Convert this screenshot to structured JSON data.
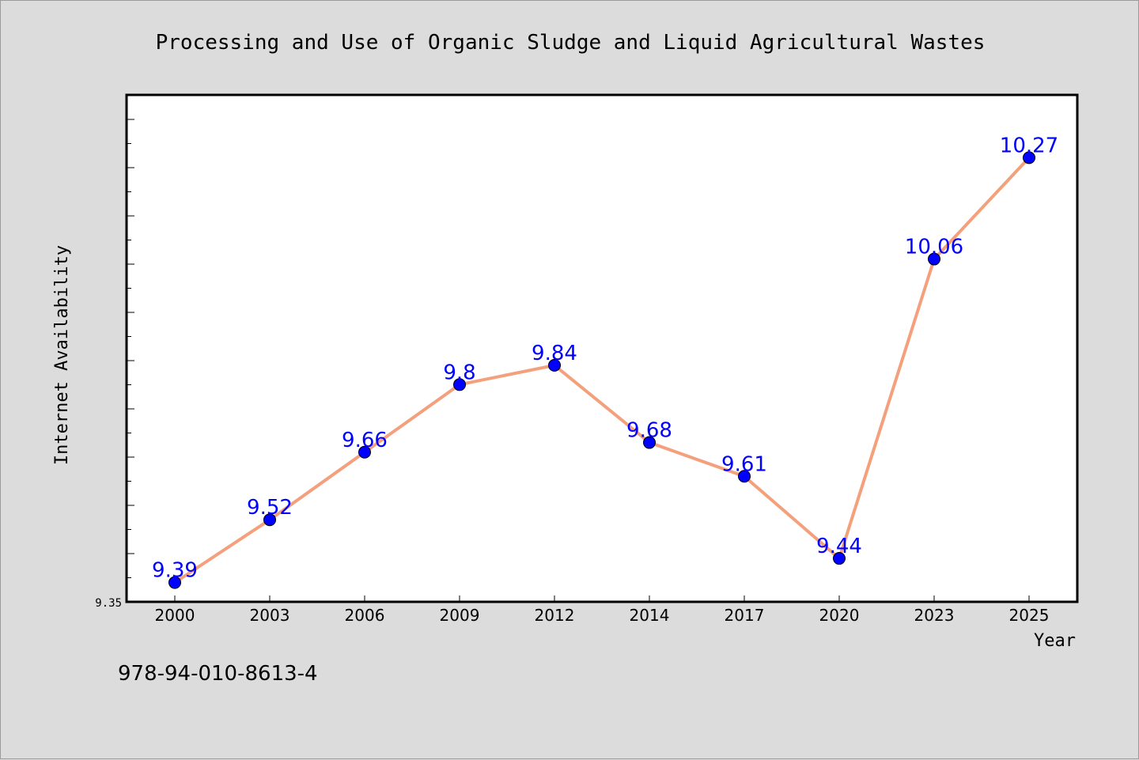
{
  "chart_data": {
    "type": "line",
    "title": "Processing and Use of Organic Sludge and Liquid Agricultural Wastes",
    "xlabel": "Year",
    "ylabel": "Internet Availability",
    "categories": [
      "2000",
      "2003",
      "2006",
      "2009",
      "2012",
      "2014",
      "2017",
      "2020",
      "2023",
      "2025"
    ],
    "values": [
      9.39,
      9.52,
      9.66,
      9.8,
      9.84,
      9.68,
      9.61,
      9.44,
      10.06,
      10.27
    ],
    "data_labels": [
      "9.39",
      "9.52",
      "9.66",
      "9.8",
      "9.84",
      "9.68",
      "9.61",
      "9.44",
      "10.06",
      "10.27"
    ],
    "ylim": [
      9.35,
      10.4
    ],
    "y_tick_labels": [
      "9.35"
    ],
    "grid": false,
    "line_color": "#f4a07c",
    "marker_color": "#0000ff",
    "label_color": "#0000ff"
  },
  "footer": {
    "isbn": "978-94-010-8613-4"
  }
}
